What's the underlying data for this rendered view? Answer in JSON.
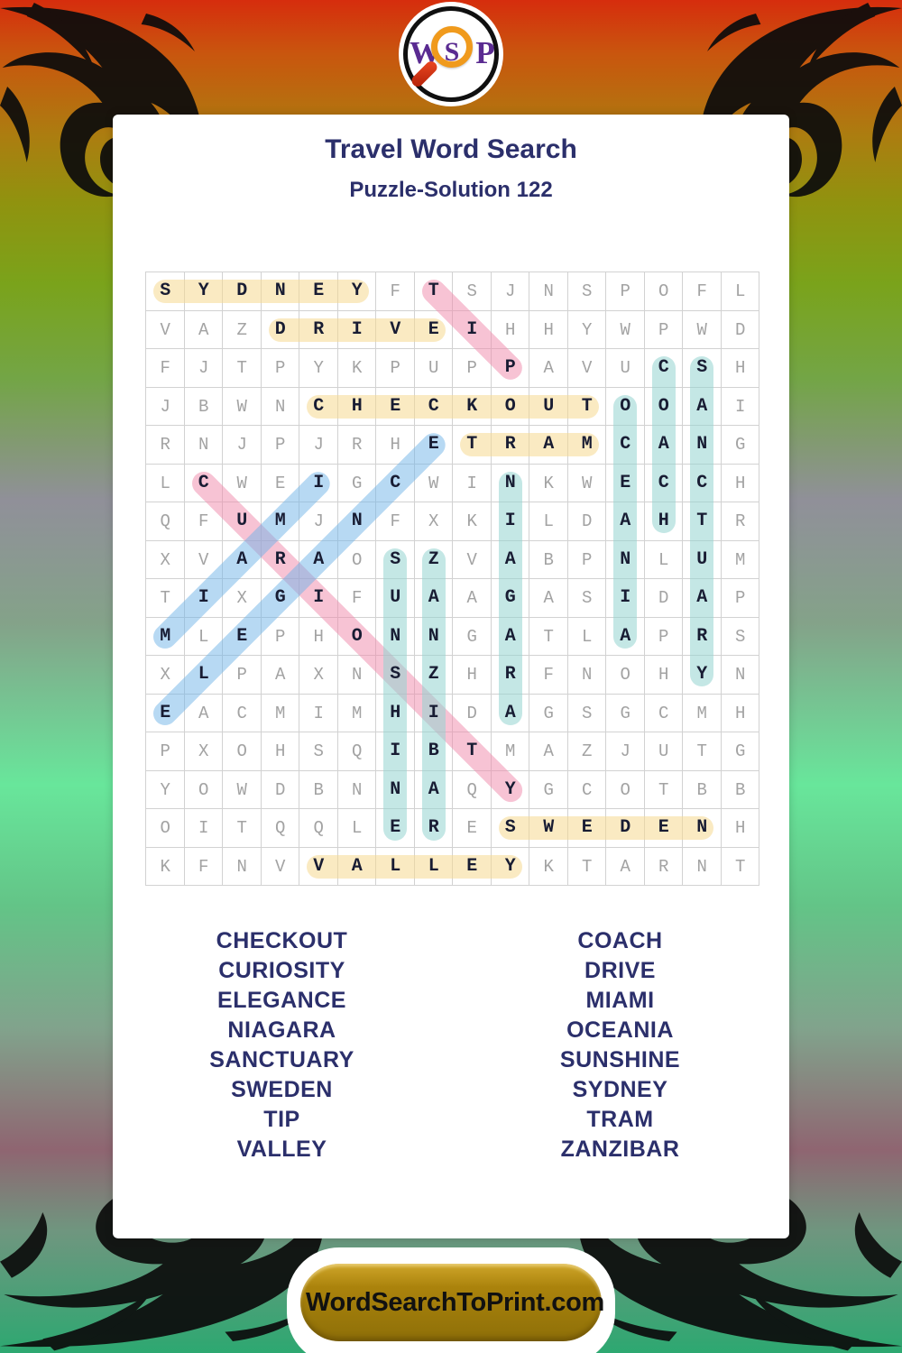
{
  "logo": {
    "letter_w": "W",
    "letter_s": "S",
    "letter_p": "P"
  },
  "header": {
    "title": "Travel Word Search",
    "subtitle": "Puzzle-Solution 122"
  },
  "puzzle": {
    "grid_rows": [
      "SYDNEYFTSJNSPOFL",
      "VAZDRIVEIHHYWPWD",
      "FJTPYKPUPPAVUCSH",
      "JBWNCHECKOUTOOAI",
      "RNJPJRHETRAMCANG",
      "LCWEIGCWINKWECCH",
      "QFUMJNFXKILDAHTR",
      "XVARAOSZVABPNLUM",
      "TIXGIFUAAGASIDAP",
      "MLEPHONNGATLAPRS",
      "XLPAXNSZHRFNOHYN",
      "EACMIMHIDAGSGCMH",
      "PXOHSQIBTMAZJUTG",
      "YOWDBNNAQYGCOTBB",
      "OITQQLERESWEDENH",
      "KFNVVALLEYKTARNT"
    ],
    "highlight_colors": {
      "yellow": "rgba(245,217,143,0.55)",
      "pink": "rgba(239,135,169,0.5)",
      "blue": "rgba(111,179,231,0.5)",
      "teal": "rgba(147,211,207,0.55)"
    },
    "placements": [
      {
        "word": "SYDNEY",
        "row_start": 1,
        "col_start": 1,
        "row_end": 1,
        "col_end": 6,
        "color": "yellow"
      },
      {
        "word": "DRIVE",
        "row_start": 2,
        "col_start": 4,
        "row_end": 2,
        "col_end": 8,
        "color": "yellow"
      },
      {
        "word": "CHECKOUT",
        "row_start": 4,
        "col_start": 5,
        "row_end": 4,
        "col_end": 12,
        "color": "yellow"
      },
      {
        "word": "TRAM",
        "row_start": 5,
        "col_start": 9,
        "row_end": 5,
        "col_end": 12,
        "color": "yellow"
      },
      {
        "word": "SWEDEN",
        "row_start": 15,
        "col_start": 10,
        "row_end": 15,
        "col_end": 15,
        "color": "yellow"
      },
      {
        "word": "VALLEY",
        "row_start": 16,
        "col_start": 5,
        "row_end": 16,
        "col_end": 10,
        "color": "yellow"
      },
      {
        "word": "TIP",
        "row_start": 1,
        "col_start": 8,
        "row_end": 3,
        "col_end": 10,
        "color": "pink"
      },
      {
        "word": "CURIOSITY",
        "row_start": 6,
        "col_start": 2,
        "row_end": 14,
        "col_end": 10,
        "color": "pink"
      },
      {
        "word": "MIAMI",
        "row_start": 10,
        "col_start": 1,
        "row_end": 6,
        "col_end": 5,
        "color": "blue"
      },
      {
        "word": "ELEGANCE",
        "row_start": 12,
        "col_start": 1,
        "row_end": 5,
        "col_end": 8,
        "color": "blue"
      },
      {
        "word": "COACH",
        "row_start": 3,
        "col_start": 14,
        "row_end": 7,
        "col_end": 14,
        "color": "teal"
      },
      {
        "word": "OCEANIA",
        "row_start": 4,
        "col_start": 13,
        "row_end": 10,
        "col_end": 13,
        "color": "teal"
      },
      {
        "word": "SANCTUARY",
        "row_start": 3,
        "col_start": 15,
        "row_end": 11,
        "col_end": 15,
        "color": "teal"
      },
      {
        "word": "NIAGARA",
        "row_start": 6,
        "col_start": 10,
        "row_end": 12,
        "col_end": 10,
        "color": "teal"
      },
      {
        "word": "SUNSHINE",
        "row_start": 8,
        "col_start": 7,
        "row_end": 15,
        "col_end": 7,
        "color": "teal"
      },
      {
        "word": "ZANZIBAR",
        "row_start": 8,
        "col_start": 8,
        "row_end": 15,
        "col_end": 8,
        "color": "teal"
      }
    ]
  },
  "word_list": {
    "left": [
      "CHECKOUT",
      "CURIOSITY",
      "ELEGANCE",
      "NIAGARA",
      "SANCTUARY",
      "SWEDEN",
      "TIP",
      "VALLEY"
    ],
    "right": [
      "COACH",
      "DRIVE",
      "MIAMI",
      "OCEANIA",
      "SUNSHINE",
      "SYDNEY",
      "TRAM",
      "ZANZIBAR"
    ]
  },
  "footer": {
    "site_label": "WordSearchToPrint.com"
  },
  "colors": {
    "title_navy": "#2b2f6b",
    "solved_letter": "#181c33",
    "filler_letter": "#a3a3a3",
    "button_gold": "#ab830c",
    "logo_purple": "#5a2b91",
    "lens_orange": "#f09a1c",
    "handle_red": "#c92a10"
  }
}
